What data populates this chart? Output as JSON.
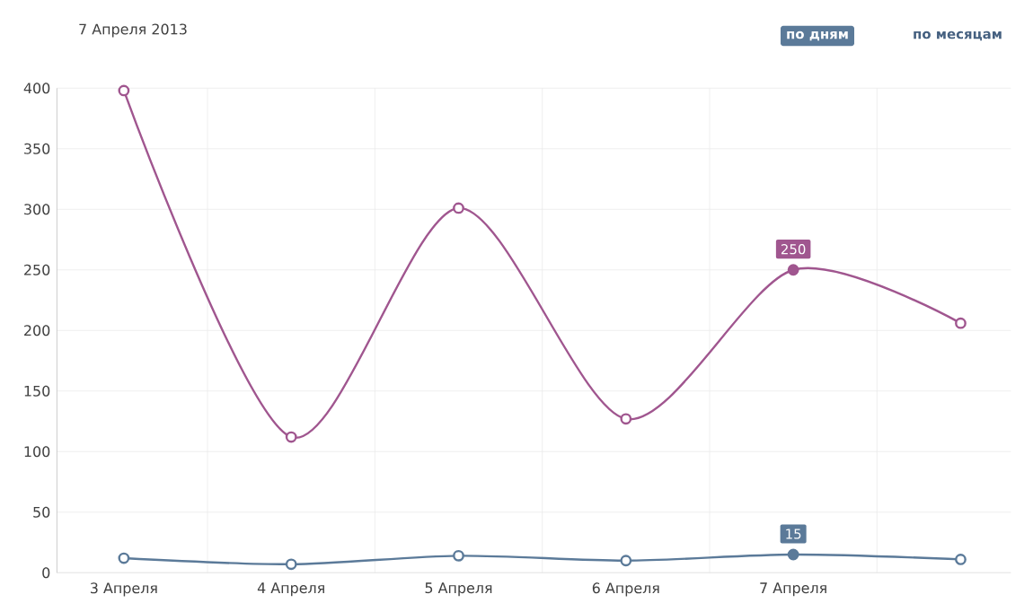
{
  "chart_data": {
    "type": "line",
    "title": "7 Апреля 2013",
    "annotations": [
      "по дням",
      "по месяцам"
    ],
    "categories": [
      "3 Апреля",
      "4 Апреля",
      "5 Апреля",
      "6 Апреля",
      "7 Апреля",
      null
    ],
    "series": [
      {
        "color": "#a0568f",
        "values": [
          398,
          112,
          301,
          127,
          250,
          206
        ],
        "value_labels": [
          null,
          null,
          null,
          null,
          "250",
          null
        ]
      },
      {
        "color": "#5b7a99",
        "values": [
          12,
          7,
          14,
          10,
          15,
          11
        ],
        "value_labels": [
          null,
          null,
          null,
          null,
          "15",
          null
        ]
      }
    ],
    "ylim": [
      0,
      400
    ],
    "yticks": [
      0,
      50,
      100,
      150,
      200,
      250,
      300,
      350,
      400
    ],
    "grid": true,
    "marker": "circle",
    "line_style": "solid"
  }
}
